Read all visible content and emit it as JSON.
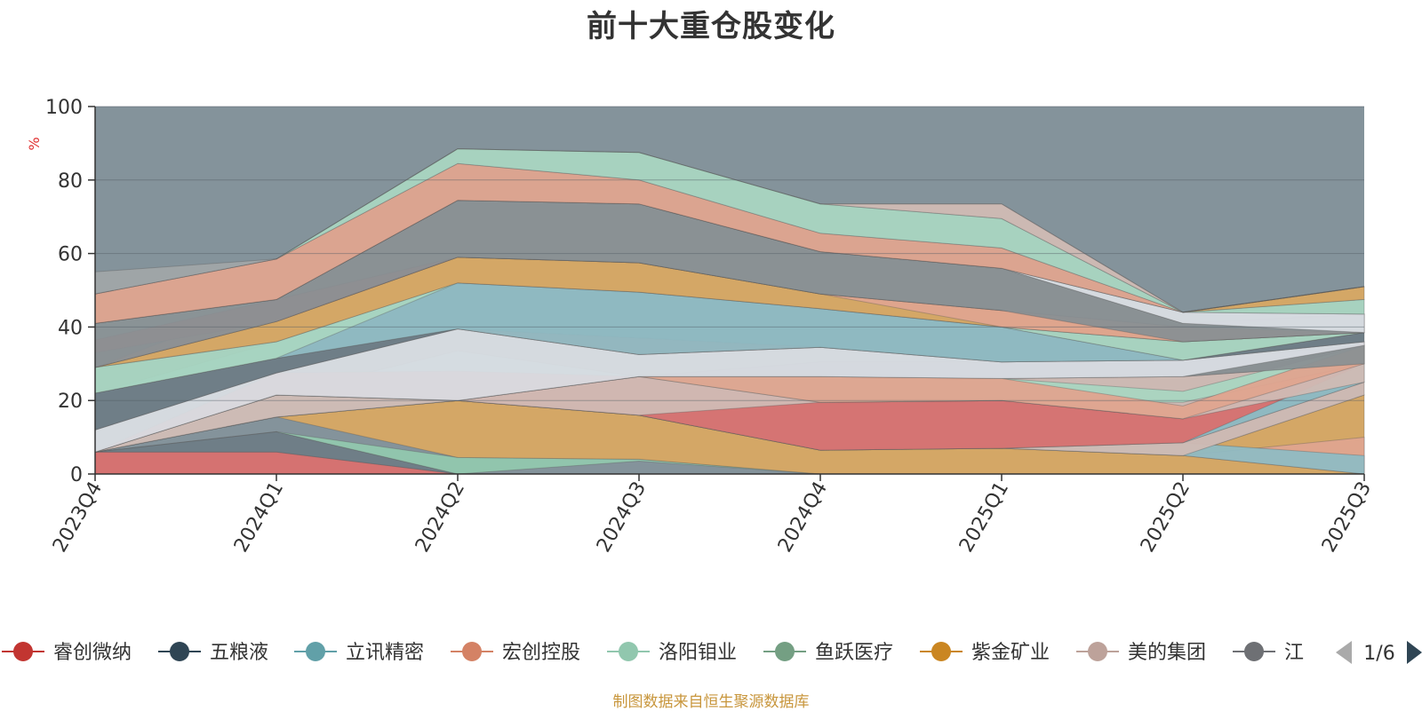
{
  "chart_data": {
    "type": "area",
    "title": "前十大重仓股变化",
    "ylabel": "%",
    "ylim": [
      0,
      100
    ],
    "yticks": [
      "0",
      "20",
      "40",
      "60",
      "80",
      "100"
    ],
    "categories": [
      "2023Q4",
      "2024Q1",
      "2024Q2",
      "2024Q3",
      "2024Q4",
      "2025Q1",
      "2025Q2",
      "2025Q3"
    ],
    "background_band": {
      "color": "#84939b",
      "value": 100
    },
    "series": [
      {
        "name": "睿创微纳",
        "color": "#d9706f",
        "boundary_pairs": [
          [
            0,
            6,
            0,
            6
          ],
          [
            6,
            6,
            0,
            0
          ],
          [
            0,
            0,
            0,
            0
          ],
          [
            0,
            0,
            0,
            0
          ],
          [
            0,
            0,
            0,
            0
          ],
          [
            0,
            0,
            0,
            0
          ],
          [
            0,
            0,
            0,
            0
          ],
          [
            0,
            0,
            0,
            0
          ]
        ]
      },
      {
        "name": "五粮液",
        "color": "#2f4554",
        "values": [
          0,
          5.5,
          0,
          0,
          0,
          0,
          0,
          0
        ]
      },
      {
        "name": "立讯精密",
        "color": "#61a0a8",
        "values": [
          0,
          4,
          0,
          0,
          0,
          0,
          0,
          0
        ]
      },
      {
        "name": "宏创控股",
        "color": "#d48265",
        "values": [
          0,
          0,
          0,
          0,
          0,
          0,
          0,
          0
        ]
      },
      {
        "name": "洛阳钼业",
        "color": "#91c7ae",
        "values": [
          0,
          0,
          0,
          0,
          0,
          0,
          0,
          0
        ]
      },
      {
        "name": "鱼跃医疗",
        "color": "#749f83",
        "values": [
          0,
          0,
          0,
          0,
          0,
          0,
          0,
          0
        ]
      },
      {
        "name": "紫金矿业",
        "color": "#ca8622",
        "values": [
          0,
          0,
          0,
          0,
          0,
          0,
          0,
          0
        ]
      },
      {
        "name": "美的集团",
        "color": "#bda29a",
        "values": [
          0,
          0,
          0,
          0,
          0,
          0,
          0,
          0
        ]
      },
      {
        "name": "江丰电子",
        "color": "#6e7074",
        "values": [
          0,
          0,
          0,
          0,
          0,
          0,
          0,
          0
        ]
      }
    ],
    "layers": [
      {
        "color": "#d9706f",
        "top": [
          6,
          6,
          0,
          0,
          0,
          0,
          0,
          0
        ],
        "bottom": [
          0,
          0,
          0,
          0,
          0,
          0,
          0,
          0
        ]
      },
      {
        "color": "#6e7c86",
        "top": [
          6,
          11.5,
          0,
          0,
          0,
          0,
          0,
          0
        ],
        "bottom": [
          6,
          6,
          0,
          0,
          0,
          0,
          0,
          0
        ]
      },
      {
        "color": "#91c7ae",
        "top": [
          6,
          11.5,
          4.5,
          4,
          0,
          0,
          0,
          0
        ],
        "bottom": [
          6,
          11.5,
          0,
          3.5,
          0,
          0,
          0,
          0
        ]
      },
      {
        "color": "#d8a863",
        "top": [
          6,
          15.5,
          20,
          16,
          6.5,
          7,
          5,
          21.5
        ],
        "bottom": [
          6,
          15.5,
          4.5,
          4,
          0,
          0,
          0,
          0
        ]
      },
      {
        "color": "#dfa48f",
        "top": [
          6,
          15.5,
          20,
          16,
          6.5,
          7,
          5,
          10
        ],
        "bottom": [
          6,
          15.5,
          20,
          16,
          6.5,
          7,
          5,
          0
        ]
      },
      {
        "color": "#8fbbc3",
        "top": [
          6,
          15.5,
          20,
          16,
          6.5,
          7,
          8.5,
          5
        ],
        "bottom": [
          6,
          15.5,
          20,
          16,
          6.5,
          7,
          5,
          0
        ]
      },
      {
        "color": "#d0bab4",
        "top": [
          6,
          21.5,
          20,
          16,
          6.5,
          7,
          8.5,
          25
        ],
        "bottom": [
          6,
          15.5,
          20,
          16,
          6.5,
          7,
          5,
          21.5
        ]
      },
      {
        "color": "#8fbbc3",
        "top": [
          6,
          21.5,
          33.5,
          26.5,
          19.5,
          20,
          15,
          35
        ],
        "bottom": [
          6,
          15.5,
          20,
          16,
          6.5,
          7,
          8.5,
          25
        ]
      },
      {
        "color": "#d9706f",
        "top": [
          6,
          27.5,
          28,
          26.5,
          19.5,
          20,
          15,
          36
        ],
        "bottom": [
          6,
          21.5,
          20,
          16,
          6.5,
          7,
          8.5,
          30
        ]
      },
      {
        "color": "#d0bab4",
        "top": [
          6,
          21.5,
          20,
          26.5,
          26.5,
          26,
          26.5,
          30
        ],
        "bottom": [
          6,
          15.5,
          20,
          16,
          19.5,
          20,
          15,
          25
        ]
      },
      {
        "color": "#a9d5c1",
        "top": [
          6,
          21.5,
          20,
          26.5,
          26.5,
          26,
          22.5,
          35
        ],
        "bottom": [
          6,
          21.5,
          20,
          26.5,
          19.5,
          20,
          19.5,
          30
        ]
      },
      {
        "color": "#dfa48f",
        "top": [
          6,
          21.5,
          20,
          26.5,
          26.5,
          26,
          18.5,
          35
        ],
        "bottom": [
          6,
          21.5,
          20,
          26.5,
          19.5,
          20,
          15,
          30
        ]
      },
      {
        "color": "#8a9094",
        "top": [
          6,
          21.5,
          20,
          26.5,
          30.5,
          30.5,
          31,
          35
        ],
        "bottom": [
          6,
          21.5,
          20,
          26.5,
          26.5,
          26,
          26.5,
          30
        ]
      },
      {
        "color": "#d9dde3",
        "top": [
          12,
          27.5,
          39.5,
          32.5,
          34.5,
          30.5,
          31,
          36
        ],
        "bottom": [
          6,
          21.5,
          20,
          26.5,
          26.5,
          26,
          26.5,
          35
        ]
      },
      {
        "color": "#d9706f",
        "top": [
          12,
          27.5,
          39.5,
          37,
          34.5,
          30.5,
          31,
          36
        ],
        "bottom": [
          12,
          27.5,
          39.5,
          32.5,
          34.5,
          30.5,
          31,
          36
        ]
      },
      {
        "color": "#6e7c86",
        "top": [
          22,
          31.5,
          39.5,
          32.5,
          34.5,
          30.5,
          31,
          38.5
        ],
        "bottom": [
          12,
          27.5,
          39.5,
          32.5,
          34.5,
          30.5,
          31,
          36
        ]
      },
      {
        "color": "#8fbbc3",
        "top": [
          22,
          36,
          52,
          49.5,
          45,
          40,
          31,
          38.5
        ],
        "bottom": [
          22,
          31.5,
          39.5,
          32.5,
          34.5,
          30.5,
          31,
          38.5
        ]
      },
      {
        "color": "#a9d5c1",
        "top": [
          29,
          36,
          52,
          49.5,
          45,
          40,
          36,
          38.5
        ],
        "bottom": [
          22,
          31.5,
          52,
          49.5,
          45,
          40,
          31,
          38.5
        ]
      },
      {
        "color": "#d8a863",
        "top": [
          29,
          41.5,
          59,
          57.5,
          49,
          44.5,
          36,
          38.5
        ],
        "bottom": [
          29,
          36,
          52,
          49.5,
          45,
          40,
          36,
          38.5
        ]
      },
      {
        "color": "#8a9094",
        "top": [
          29,
          41.5,
          59,
          57.5,
          49,
          44.5,
          40,
          38.5
        ],
        "bottom": [
          29,
          41.5,
          59,
          57.5,
          49,
          44.5,
          36,
          38.5
        ]
      },
      {
        "color": "#dfa48f",
        "top": [
          29,
          47.5,
          59,
          57.5,
          49,
          44.5,
          40,
          38.5
        ],
        "bottom": [
          29,
          41.5,
          59,
          57.5,
          49,
          40,
          36,
          38.5
        ]
      },
      {
        "color": "#d9706f",
        "top": [
          36.5,
          47.5,
          59,
          57.5,
          49,
          44.5,
          40,
          38.5
        ],
        "bottom": [
          33,
          41.5,
          59,
          57.5,
          49,
          44.5,
          40,
          38.5
        ]
      },
      {
        "color": "#8fbbc3",
        "top": [
          41,
          47.5,
          59,
          57.5,
          49,
          44.5,
          40,
          43.5
        ],
        "bottom": [
          36.5,
          47.5,
          59,
          57.5,
          49,
          44.5,
          40,
          38.5
        ]
      },
      {
        "color": "#8a9094",
        "top": [
          41,
          47.5,
          74.5,
          73.5,
          60.5,
          56,
          41,
          43.5
        ],
        "bottom": [
          29,
          41.5,
          59,
          57.5,
          49,
          44.5,
          36,
          38.5
        ]
      },
      {
        "color": "#d9dde3",
        "top": [
          41,
          47.5,
          74.5,
          73.5,
          60.5,
          56,
          44,
          43.5
        ],
        "bottom": [
          41,
          47.5,
          74.5,
          73.5,
          60.5,
          56,
          41,
          38.5
        ]
      },
      {
        "color": "#a9d5c1",
        "top": [
          41,
          47.5,
          74.5,
          73.5,
          60.5,
          56,
          44,
          47.5
        ],
        "bottom": [
          41,
          47.5,
          74.5,
          73.5,
          60.5,
          56,
          44,
          43.5
        ]
      },
      {
        "color": "#d8a863",
        "top": [
          41,
          47.5,
          74.5,
          73.5,
          60.5,
          56,
          44,
          51
        ],
        "bottom": [
          41,
          47.5,
          74.5,
          73.5,
          60.5,
          56,
          44,
          47.5
        ]
      },
      {
        "color": "#dfa48f",
        "top": [
          49,
          58.5,
          84.5,
          80,
          65.5,
          61.5,
          44,
          51
        ],
        "bottom": [
          41,
          47.5,
          74.5,
          73.5,
          60.5,
          56,
          44,
          51
        ]
      },
      {
        "color": "#a9d5c1",
        "top": [
          49,
          58.5,
          88.5,
          87.5,
          73.5,
          69.5,
          44,
          51
        ],
        "bottom": [
          49,
          58.5,
          84.5,
          80,
          65.5,
          61.5,
          44,
          51
        ]
      },
      {
        "color": "#d0bab4",
        "top": [
          49,
          58.5,
          88.5,
          87.5,
          73.5,
          73.5,
          44,
          51
        ],
        "bottom": [
          49,
          58.5,
          88.5,
          87.5,
          73.5,
          69.5,
          44,
          51
        ]
      },
      {
        "color": "#a0a5a8",
        "top": [
          55,
          58.5,
          88.5,
          87.5,
          73.5,
          73.5,
          44,
          51
        ],
        "bottom": [
          49,
          58.5,
          88.5,
          87.5,
          73.5,
          73.5,
          44,
          51
        ]
      }
    ]
  },
  "legend": {
    "items": [
      {
        "label": "睿创微纳",
        "color": "#c23531"
      },
      {
        "label": "五粮液",
        "color": "#2f4554"
      },
      {
        "label": "立讯精密",
        "color": "#61a0a8"
      },
      {
        "label": "宏创控股",
        "color": "#d48265"
      },
      {
        "label": "洛阳钼业",
        "color": "#91c7ae"
      },
      {
        "label": "鱼跃医疗",
        "color": "#749f83"
      },
      {
        "label": "紫金矿业",
        "color": "#ca8622"
      },
      {
        "label": "美的集团",
        "color": "#bda29a"
      },
      {
        "label": "江丰电子",
        "visible_text": "江|",
        "color": "#6e7074"
      }
    ],
    "page_indicator": "1/6"
  },
  "source_note": "制图数据来自恒生聚源数据库"
}
